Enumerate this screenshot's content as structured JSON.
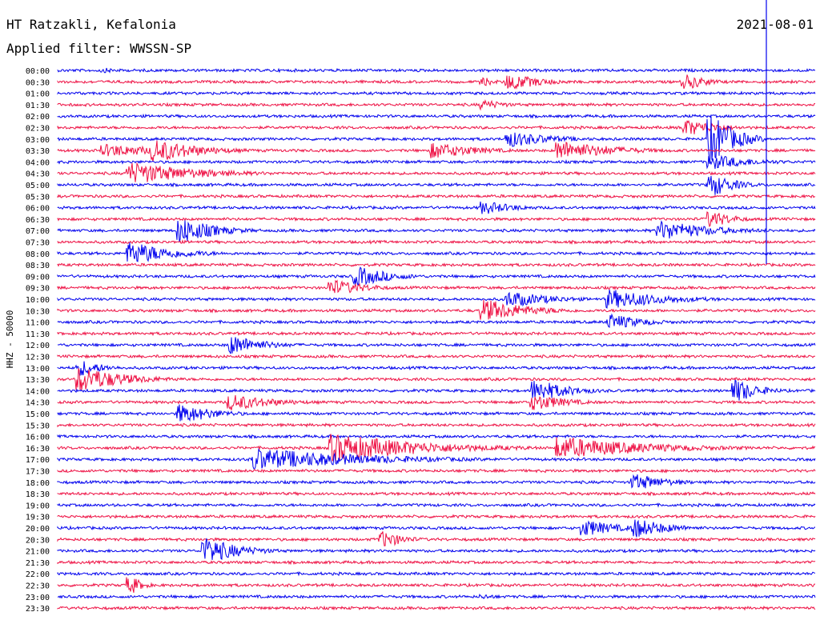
{
  "header": {
    "station": "HT Ratzakli, Kefalonia",
    "filter": "Applied filter: WWSSN-SP",
    "date": "2021-08-01"
  },
  "axis": {
    "ylabel": "HHZ - 50000"
  },
  "chart_data": {
    "type": "line",
    "title": "HT Ratzakli, Kefalonia",
    "subtitle": "Applied filter: WWSSN-SP",
    "date": "2021-08-01",
    "ylabel": "HHZ - 50000",
    "row_interval_minutes": 30,
    "rows": [
      "00:00",
      "00:30",
      "01:00",
      "01:30",
      "02:00",
      "02:30",
      "03:00",
      "03:30",
      "04:00",
      "04:30",
      "05:00",
      "05:30",
      "06:00",
      "06:30",
      "07:00",
      "07:30",
      "08:00",
      "08:30",
      "09:00",
      "09:30",
      "10:00",
      "10:30",
      "11:00",
      "11:30",
      "12:00",
      "12:30",
      "13:00",
      "13:30",
      "14:00",
      "14:30",
      "15:00",
      "15:30",
      "16:00",
      "16:30",
      "17:00",
      "17:30",
      "18:00",
      "18:30",
      "19:00",
      "19:30",
      "20:00",
      "20:30",
      "21:00",
      "21:30",
      "22:00",
      "22:30",
      "23:00",
      "23:30"
    ],
    "series_colors": [
      "#0000ee",
      "#ee1144"
    ],
    "events_note": "",
    "events": [
      {
        "row": 0,
        "minute": 2,
        "amp": 3,
        "dur": 2
      },
      {
        "row": 1,
        "minute": 18,
        "amp": 10,
        "dur": 3
      },
      {
        "row": 1,
        "minute": 17,
        "amp": 5,
        "dur": 1
      },
      {
        "row": 1,
        "minute": 25,
        "amp": 9,
        "dur": 2
      },
      {
        "row": 3,
        "minute": 17,
        "amp": 6,
        "dur": 2
      },
      {
        "row": 5,
        "minute": 25,
        "amp": 10,
        "dur": 3
      },
      {
        "row": 6,
        "minute": 18,
        "amp": 10,
        "dur": 4
      },
      {
        "row": 6,
        "minute": 26,
        "amp": 30,
        "dur": 2
      },
      {
        "row": 7,
        "minute": 2,
        "amp": 8,
        "dur": 6
      },
      {
        "row": 7,
        "minute": 4,
        "amp": 14,
        "dur": 4
      },
      {
        "row": 7,
        "minute": 15,
        "amp": 10,
        "dur": 4
      },
      {
        "row": 7,
        "minute": 20,
        "amp": 12,
        "dur": 5
      },
      {
        "row": 8,
        "minute": 26,
        "amp": 9,
        "dur": 4
      },
      {
        "row": 9,
        "minute": 3,
        "amp": 14,
        "dur": 6
      },
      {
        "row": 10,
        "minute": 26,
        "amp": 14,
        "dur": 2
      },
      {
        "row": 12,
        "minute": 17,
        "amp": 8,
        "dur": 3
      },
      {
        "row": 13,
        "minute": 26,
        "amp": 10,
        "dur": 2
      },
      {
        "row": 14,
        "minute": 5,
        "amp": 16,
        "dur": 3
      },
      {
        "row": 14,
        "minute": 24,
        "amp": 12,
        "dur": 5
      },
      {
        "row": 16,
        "minute": 3,
        "amp": 14,
        "dur": 4
      },
      {
        "row": 18,
        "minute": 12,
        "amp": 12,
        "dur": 3
      },
      {
        "row": 19,
        "minute": 11,
        "amp": 10,
        "dur": 3
      },
      {
        "row": 20,
        "minute": 18,
        "amp": 10,
        "dur": 4
      },
      {
        "row": 20,
        "minute": 22,
        "amp": 12,
        "dur": 5
      },
      {
        "row": 21,
        "minute": 17,
        "amp": 14,
        "dur": 4
      },
      {
        "row": 22,
        "minute": 22,
        "amp": 10,
        "dur": 3
      },
      {
        "row": 24,
        "minute": 7,
        "amp": 12,
        "dur": 3
      },
      {
        "row": 26,
        "minute": 1,
        "amp": 10,
        "dur": 2
      },
      {
        "row": 27,
        "minute": 1,
        "amp": 16,
        "dur": 4
      },
      {
        "row": 28,
        "minute": 19,
        "amp": 14,
        "dur": 3
      },
      {
        "row": 28,
        "minute": 27,
        "amp": 14,
        "dur": 2
      },
      {
        "row": 29,
        "minute": 7,
        "amp": 10,
        "dur": 4
      },
      {
        "row": 29,
        "minute": 19,
        "amp": 10,
        "dur": 3
      },
      {
        "row": 30,
        "minute": 5,
        "amp": 12,
        "dur": 3
      },
      {
        "row": 33,
        "minute": 11,
        "amp": 18,
        "dur": 8
      },
      {
        "row": 33,
        "minute": 20,
        "amp": 14,
        "dur": 8
      },
      {
        "row": 34,
        "minute": 8,
        "amp": 14,
        "dur": 10
      },
      {
        "row": 36,
        "minute": 23,
        "amp": 10,
        "dur": 3
      },
      {
        "row": 40,
        "minute": 21,
        "amp": 10,
        "dur": 3
      },
      {
        "row": 40,
        "minute": 23,
        "amp": 12,
        "dur": 3
      },
      {
        "row": 41,
        "minute": 13,
        "amp": 10,
        "dur": 2
      },
      {
        "row": 42,
        "minute": 6,
        "amp": 16,
        "dur": 3
      },
      {
        "row": 45,
        "minute": 3,
        "amp": 10,
        "dur": 1
      },
      {
        "row": 46,
        "minute": 17,
        "amp": 3,
        "dur": 2
      }
    ]
  }
}
